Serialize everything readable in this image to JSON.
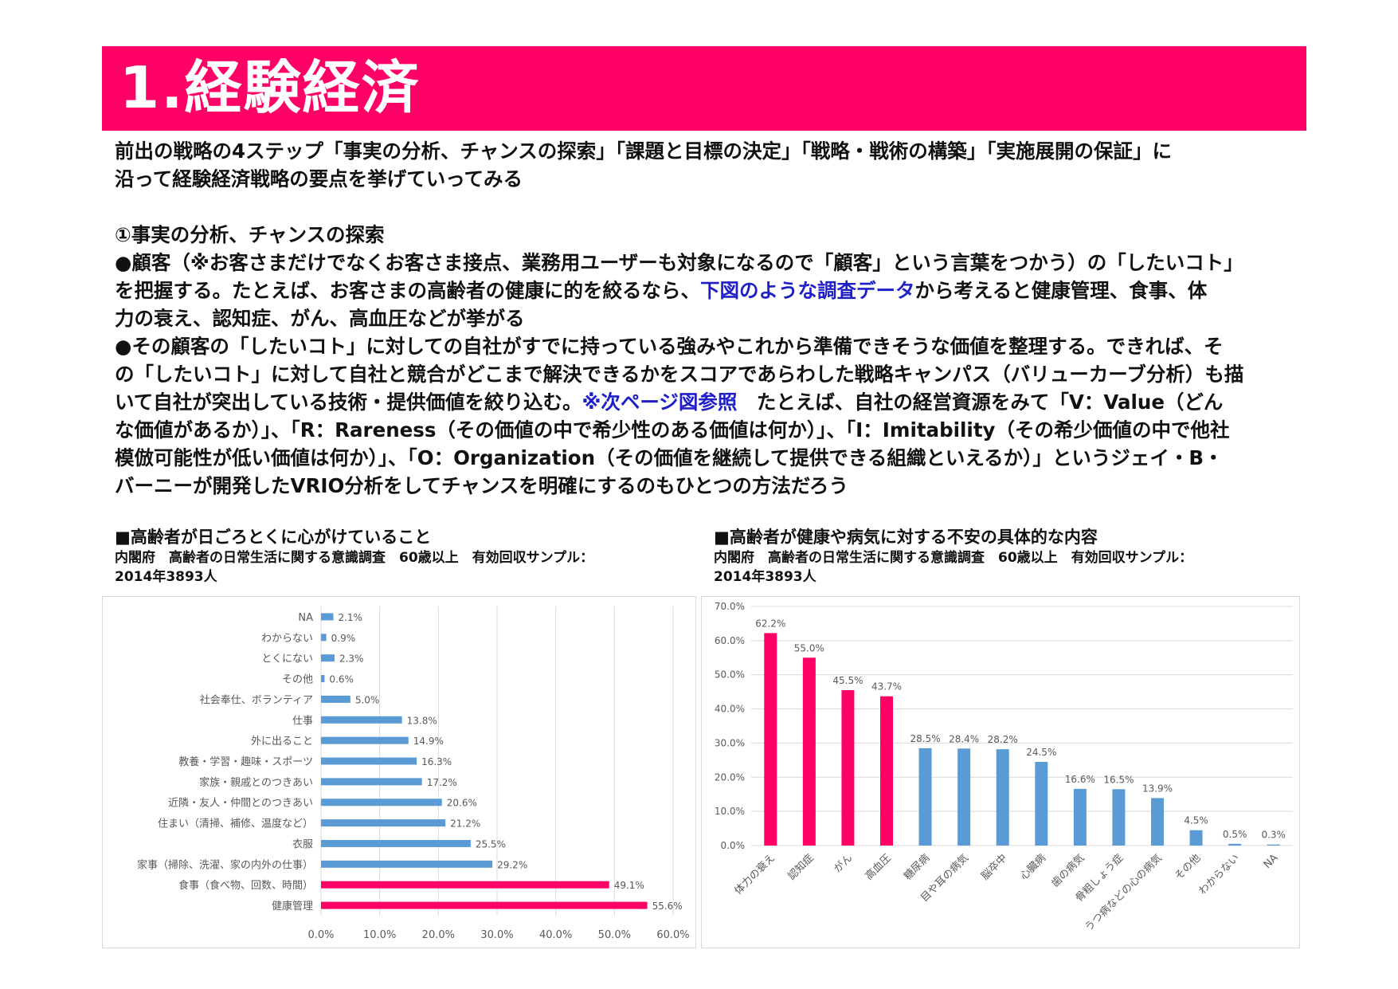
{
  "title": "1.経験経済",
  "intro": [
    "前出の戦略の4ステップ「事実の分析、チャンスの探索」「課題と目標の決定」「戦略・戦術の構築」「実施展開の保証」に",
    "沿って経験経済戦略の要点を挙げていってみる"
  ],
  "section_heading": "①事実の分析、チャンスの探索",
  "para1": {
    "line1": "●顧客（※お客さまだけでなくお客さま接点、業務用ユーザーも対象になるので「顧客」という言葉をつかう）の「したいコト」",
    "line2_before": "を把握する。たとえば、お客さまの高齢者の健康に的を絞るなら、",
    "line2_link": "下図のような調査データ",
    "line2_after": "から考えると健康管理、食事、体",
    "line3": "力の衰え、認知症、がん、高血圧などが挙がる"
  },
  "para2": {
    "line1": "●その顧客の「したいコト」に対しての自社がすでに持っている強みやこれから準備できそうな価値を整理する。できれば、そ",
    "line2": "の「したいコト」に対して自社と競合がどこまで解決できるかをスコアであらわした戦略キャンパス（バリューカーブ分析）も描",
    "line3_before": "いて自社が突出している技術・提供価値を絞り込む。",
    "line3_link": "※次ページ図参照",
    "line3_after": "　たとえば、自社の経営資源をみて「V：Value（どん",
    "line4": "な価値があるか）」、「R：Rareness（その価値の中で希少性のある価値は何か）」、「I：Imitability（その希少価値の中で他社",
    "line5": "模倣可能性が低い価値は何か）」、「O：Organization（その価値を継続して提供できる組織といえるか）」というジェイ・B・",
    "line6": "バーニーが開発したVRIO分析をしてチャンスを明確にするのもひとつの方法だろう"
  },
  "left_chart_heading": {
    "title": "■高齢者が日ごろとくに心がけていること",
    "source_line1": "内閣府　高齢者の日常生活に関する意識調査　60歳以上　有効回収サンプル：",
    "source_line2": "2014年3893人"
  },
  "right_chart_heading": {
    "title": "■高齢者が健康や病気に対する不安の具体的な内容",
    "source_line1": "内閣府　高齢者の日常生活に関する意識調査　60歳以上　有効回収サンプル：",
    "source_line2": "2014年3893人"
  },
  "colors": {
    "accent": "#ff0066",
    "bar_blue": "#5b9bd5",
    "highlight_text": "#1f1fc8"
  },
  "chart_data": [
    {
      "type": "bar",
      "orientation": "horizontal",
      "categories": [
        "NA",
        "わからない",
        "とくにない",
        "その他",
        "社会奉仕、ボランティア",
        "仕事",
        "外に出ること",
        "教養・学習・趣味・スポーツ",
        "家族・親戚とのつきあい",
        "近隣・友人・仲間とのつきあい",
        "住まい（清掃、補修、温度など）",
        "衣服",
        "家事（掃除、洗濯、家の内外の仕事）",
        "食事（食べ物、回数、時間）",
        "健康管理"
      ],
      "values": [
        2.1,
        0.9,
        2.3,
        0.6,
        5.0,
        13.8,
        14.9,
        16.3,
        17.2,
        20.6,
        21.2,
        25.5,
        29.2,
        49.1,
        55.6
      ],
      "data_labels": [
        "2.1%",
        "0.9%",
        "2.3%",
        "0.6%",
        "5.0%",
        "13.8%",
        "14.9%",
        "16.3%",
        "17.2%",
        "20.6%",
        "21.2%",
        "25.5%",
        "29.2%",
        "49.1%",
        "55.6%"
      ],
      "highlight": [
        false,
        false,
        false,
        false,
        false,
        false,
        false,
        false,
        false,
        false,
        false,
        false,
        false,
        true,
        true
      ],
      "xlim": [
        0,
        60
      ],
      "ticks": [
        "0.0%",
        "10.0%",
        "20.0%",
        "30.0%",
        "40.0%",
        "50.0%",
        "60.0%"
      ],
      "grid": true
    },
    {
      "type": "bar",
      "orientation": "vertical",
      "categories": [
        "体力の衰え",
        "認知症",
        "がん",
        "高血圧",
        "糖尿病",
        "目や耳の病気",
        "脳卒中",
        "心臓病",
        "歯の病気",
        "骨粗しょう症",
        "うつ病などの心の病気",
        "その他",
        "わからない",
        "NA"
      ],
      "values": [
        62.2,
        55.0,
        45.5,
        43.7,
        28.5,
        28.4,
        28.2,
        24.5,
        16.6,
        16.5,
        13.9,
        4.5,
        0.5,
        0.3
      ],
      "data_labels": [
        "62.2%",
        "55.0%",
        "45.5%",
        "43.7%",
        "28.5%",
        "28.4%",
        "28.2%",
        "24.5%",
        "16.6%",
        "16.5%",
        "13.9%",
        "4.5%",
        "0.5%",
        "0.3%"
      ],
      "highlight": [
        true,
        true,
        true,
        true,
        false,
        false,
        false,
        false,
        false,
        false,
        false,
        false,
        false,
        false
      ],
      "ylim": [
        0,
        70
      ],
      "ticks": [
        "0.0%",
        "10.0%",
        "20.0%",
        "30.0%",
        "40.0%",
        "50.0%",
        "60.0%",
        "70.0%"
      ],
      "grid": true
    }
  ]
}
